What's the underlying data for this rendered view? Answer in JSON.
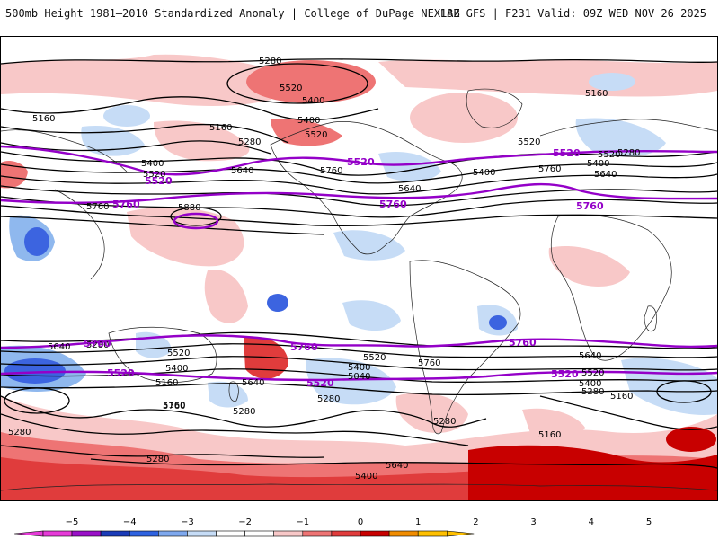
{
  "header": {
    "title": "500mb Height 1981–2010 Standardized Anomaly | College of DuPage NEXLAB",
    "run": "18Z GFS | F231 Valid: 09Z WED NOV 26 2025"
  },
  "map": {
    "contour_labels_black": [
      "5280",
      "5520",
      "5400",
      "5160",
      "5400",
      "5160",
      "5280",
      "5520",
      "5160",
      "5400",
      "5520",
      "5640",
      "5760",
      "5880",
      "5760",
      "5640",
      "5400",
      "5520",
      "5760",
      "5640",
      "5520",
      "5400",
      "5280",
      "5160",
      "5640",
      "5520",
      "5400",
      "5160",
      "5760",
      "5640",
      "5520",
      "5400",
      "5040",
      "5280",
      "5280",
      "5160",
      "5760",
      "5640",
      "5520",
      "5400",
      "5280",
      "5160",
      "5280",
      "5280",
      "5160",
      "5280",
      "5640",
      "5400",
      "5280"
    ],
    "contour_labels_purple": [
      "5520",
      "5520",
      "5520",
      "5760",
      "5760",
      "5760",
      "5760",
      "5760",
      "5760",
      "5520",
      "5520",
      "5520"
    ],
    "colors": {
      "line": "#000000",
      "highlight": "#9400c8",
      "neg_light": "#c6dcf6",
      "neg_mid": "#8fb8ee",
      "neg_strong": "#3c64e0",
      "pos_light": "#f8c8c8",
      "pos_mid": "#ee7474",
      "pos_strong": "#e03c3c",
      "pos_max": "#c80000"
    }
  },
  "colorbar": {
    "ticks": [
      "−5",
      "−4",
      "−3",
      "−2",
      "−1",
      "0",
      "1",
      "2",
      "3",
      "4",
      "5"
    ],
    "segments": [
      {
        "color": "#e63ad8"
      },
      {
        "color": "#9a10c8"
      },
      {
        "color": "#1a3bb8"
      },
      {
        "color": "#2e62e0"
      },
      {
        "color": "#7ea8ee"
      },
      {
        "color": "#c6dcf6"
      },
      {
        "color": "#ffffff"
      },
      {
        "color": "#ffffff"
      },
      {
        "color": "#f8c8c8"
      },
      {
        "color": "#ee7474"
      },
      {
        "color": "#e03c3c"
      },
      {
        "color": "#c80000"
      },
      {
        "color": "#f08c00"
      },
      {
        "color": "#ffc000"
      }
    ]
  }
}
